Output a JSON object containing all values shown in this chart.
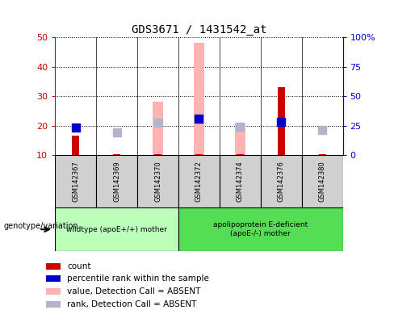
{
  "title": "GDS3671 / 1431542_at",
  "samples": [
    "GSM142367",
    "GSM142369",
    "GSM142370",
    "GSM142372",
    "GSM142374",
    "GSM142376",
    "GSM142380"
  ],
  "x_positions": [
    0,
    1,
    2,
    3,
    4,
    5,
    6
  ],
  "count_values": [
    16.5,
    10.2,
    10.2,
    10.2,
    10.2,
    33,
    10.2
  ],
  "percentile_rank": [
    23.5,
    null,
    null,
    31,
    null,
    28,
    null
  ],
  "absent_value": [
    null,
    null,
    28,
    48,
    21,
    null,
    null
  ],
  "absent_rank": [
    null,
    19.5,
    27.5,
    null,
    24,
    null,
    21
  ],
  "count_color": "#cc0000",
  "percentile_color": "#0000cc",
  "absent_value_color": "#ffb3b3",
  "absent_rank_color": "#b3b3cc",
  "ylim_left": [
    10,
    50
  ],
  "ylim_right": [
    0,
    100
  ],
  "yticks_left": [
    10,
    20,
    30,
    40,
    50
  ],
  "yticks_right": [
    0,
    25,
    50,
    75,
    100
  ],
  "ytick_labels_left": [
    "10",
    "20",
    "30",
    "40",
    "50"
  ],
  "ytick_labels_right": [
    "0",
    "25",
    "50",
    "75",
    "100%"
  ],
  "group1_samples": [
    0,
    1,
    2
  ],
  "group2_samples": [
    3,
    4,
    5,
    6
  ],
  "group1_label": "wildtype (apoE+/+) mother",
  "group2_label": "apolipoprotein E-deficient\n(apoE-/-) mother",
  "group1_color": "#bbffbb",
  "group2_color": "#55dd55",
  "genotype_label": "genotype/variation",
  "marker_size": 7,
  "legend_items": [
    {
      "label": "count",
      "color": "#cc0000"
    },
    {
      "label": "percentile rank within the sample",
      "color": "#0000cc"
    },
    {
      "label": "value, Detection Call = ABSENT",
      "color": "#ffb3b3"
    },
    {
      "label": "rank, Detection Call = ABSENT",
      "color": "#b3b3cc"
    }
  ]
}
